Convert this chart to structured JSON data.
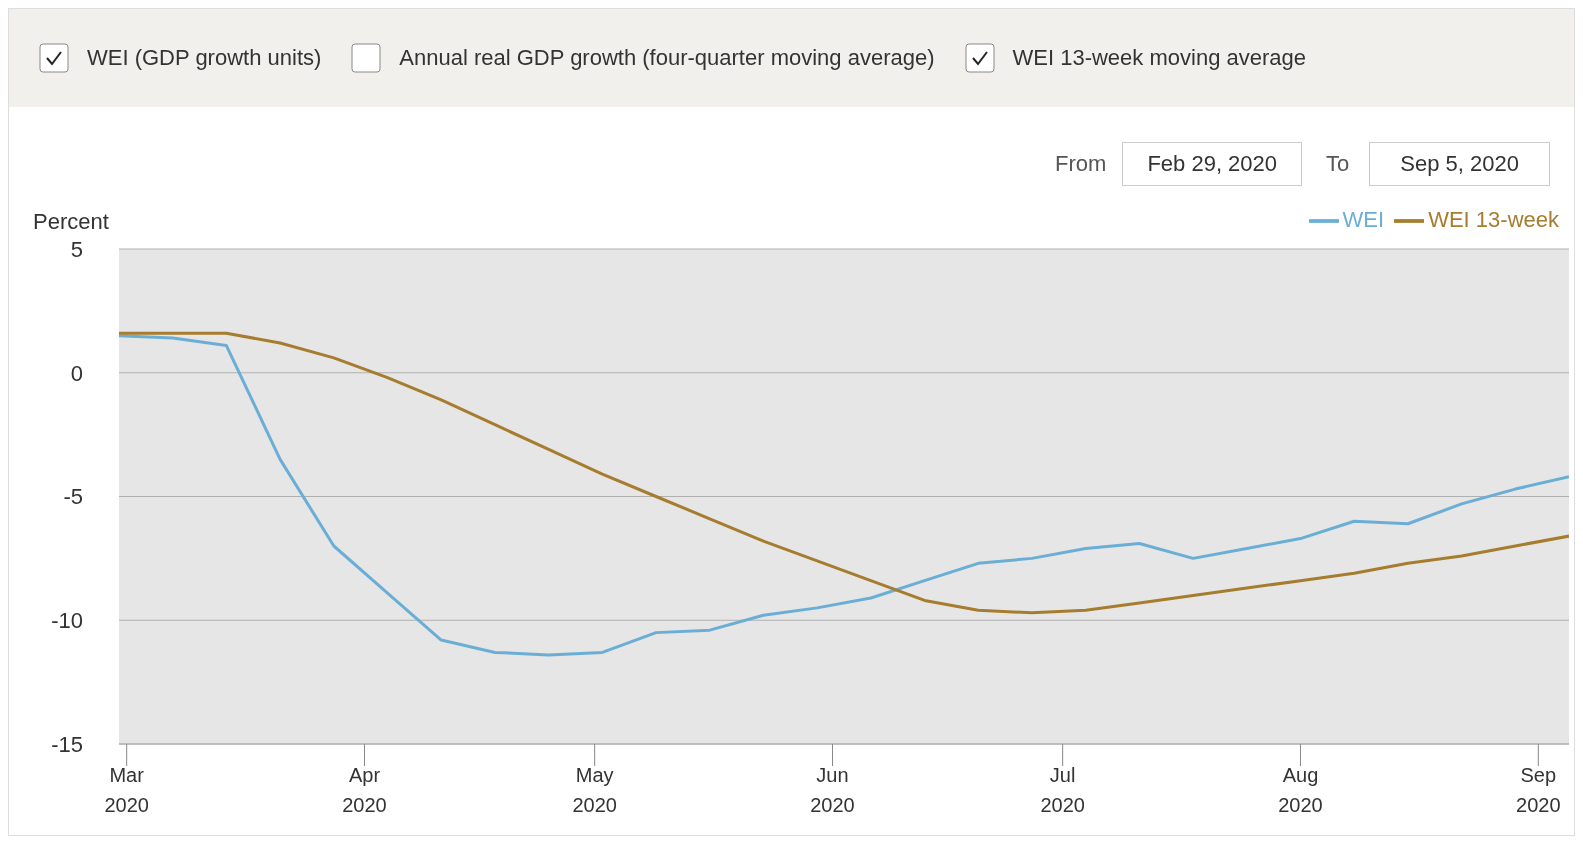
{
  "chart_data": {
    "type": "line",
    "ylabel": "Percent",
    "annotations": [
      "WEI (GDP growth units)",
      "Annual real GDP growth (four-quarter moving average)",
      "WEI 13-week moving average",
      "From",
      "Feb 29, 2020",
      "To",
      "Sep 5, 2020"
    ],
    "x": [
      "2020-02-29",
      "2020-03-07",
      "2020-03-14",
      "2020-03-21",
      "2020-03-28",
      "2020-04-04",
      "2020-04-11",
      "2020-04-18",
      "2020-04-25",
      "2020-05-02",
      "2020-05-09",
      "2020-05-16",
      "2020-05-23",
      "2020-05-30",
      "2020-06-06",
      "2020-06-13",
      "2020-06-20",
      "2020-06-27",
      "2020-07-04",
      "2020-07-11",
      "2020-07-18",
      "2020-07-25",
      "2020-08-01",
      "2020-08-08",
      "2020-08-15",
      "2020-08-22",
      "2020-08-29",
      "2020-09-05"
    ],
    "series": [
      {
        "name": "WEI",
        "color": "#6aaed6",
        "values": [
          1.5,
          1.4,
          1.1,
          -3.5,
          -7.0,
          -8.9,
          -10.8,
          -11.3,
          -11.4,
          -11.3,
          -10.5,
          -10.4,
          -9.8,
          -9.5,
          -9.1,
          -8.4,
          -7.7,
          -7.5,
          -7.1,
          -6.9,
          -7.5,
          -7.1,
          -6.7,
          -6.0,
          -6.1,
          -5.3,
          -4.7,
          -4.2
        ]
      },
      {
        "name": "WEI 13-week",
        "color": "#a67c2e",
        "values": [
          1.6,
          1.6,
          1.6,
          1.2,
          0.6,
          -0.2,
          -1.1,
          -2.1,
          -3.1,
          -4.1,
          -5.0,
          -5.9,
          -6.8,
          -7.6,
          -8.4,
          -9.2,
          -9.6,
          -9.7,
          -9.6,
          -9.3,
          -9.0,
          -8.7,
          -8.4,
          -8.1,
          -7.7,
          -7.4,
          -7.0,
          -6.6
        ]
      }
    ],
    "xlim": [
      "2020-02-29",
      "2020-09-05"
    ],
    "xticks": [
      {
        "value": "2020-03-01",
        "label": "Mar 2020"
      },
      {
        "value": "2020-04-01",
        "label": "Apr 2020"
      },
      {
        "value": "2020-05-01",
        "label": "May 2020"
      },
      {
        "value": "2020-06-01",
        "label": "Jun 2020"
      },
      {
        "value": "2020-07-01",
        "label": "Jul 2020"
      },
      {
        "value": "2020-08-01",
        "label": "Aug 2020"
      },
      {
        "value": "2020-09-01",
        "label": "Sep 2020"
      }
    ],
    "ylim": [
      -15,
      5
    ],
    "yticks": [
      -15,
      -10,
      -5,
      0,
      5
    ],
    "grid": "y",
    "legend": "top right",
    "marker": "none",
    "line_style": "solid"
  }
}
